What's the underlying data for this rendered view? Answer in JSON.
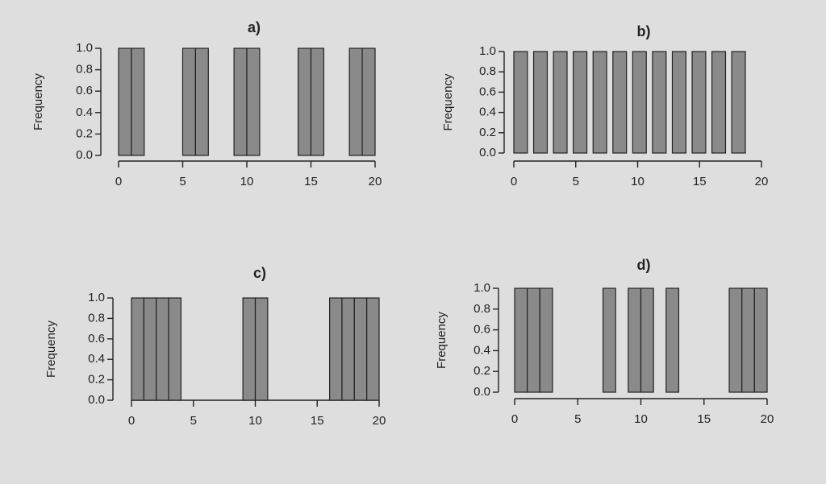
{
  "chart_data": [
    {
      "type": "histogram",
      "title": "a)",
      "y_label": "Frequency",
      "color": "#8a8a8a",
      "bins": [
        0,
        1,
        2,
        3,
        4,
        5,
        6,
        7,
        8,
        9,
        10,
        11,
        12,
        13,
        14,
        15,
        16,
        17,
        18,
        19,
        20
      ],
      "values": [
        1,
        1,
        0,
        0,
        0,
        1,
        1,
        0,
        0,
        1,
        1,
        0,
        0,
        0,
        1,
        1,
        0,
        0,
        1,
        1
      ],
      "xlim": [
        0,
        20
      ],
      "xticks": [
        0,
        5,
        10,
        15,
        20
      ],
      "ylim": [
        0,
        1
      ],
      "yticks": [
        {
          "value": 0,
          "label": "0.0"
        },
        {
          "value": 0.2,
          "label": "0.2"
        },
        {
          "value": 0.4,
          "label": "0.4"
        },
        {
          "value": 0.6,
          "label": "0.6"
        },
        {
          "value": 0.8,
          "label": "0.8"
        },
        {
          "value": 1,
          "label": "1.0"
        }
      ]
    },
    {
      "type": "histogram",
      "title": "b)",
      "y_label": "Frequency",
      "color": "#8a8a8a",
      "bins": [
        0,
        1.1,
        1.6,
        2.7,
        3.2,
        4.3,
        4.8,
        5.9,
        6.4,
        7.5,
        8,
        9.1,
        9.6,
        10.7,
        11.2,
        12.3,
        12.8,
        13.9,
        14.4,
        15.5,
        16,
        17.1,
        17.6,
        18.7
      ],
      "values": [
        1,
        0,
        1,
        0,
        1,
        0,
        1,
        0,
        1,
        0,
        1,
        0,
        1,
        0,
        1,
        0,
        1,
        0,
        1,
        0,
        1,
        0,
        1
      ],
      "xlim": [
        0,
        20
      ],
      "xticks": [
        0,
        5,
        10,
        15,
        20
      ],
      "ylim": [
        0,
        1
      ],
      "yticks": [
        {
          "value": 0,
          "label": "0.0"
        },
        {
          "value": 0.2,
          "label": "0.2"
        },
        {
          "value": 0.4,
          "label": "0.4"
        },
        {
          "value": 0.6,
          "label": "0.6"
        },
        {
          "value": 0.8,
          "label": "0.8"
        },
        {
          "value": 1,
          "label": "1.0"
        }
      ]
    },
    {
      "type": "histogram",
      "title": "c)",
      "y_label": "Frequency",
      "color": "#8a8a8a",
      "bins": [
        0,
        1,
        2,
        3,
        4,
        5,
        6,
        7,
        8,
        9,
        10,
        11,
        12,
        13,
        14,
        15,
        16,
        17,
        18,
        19,
        20
      ],
      "values": [
        1,
        1,
        1,
        1,
        0,
        0,
        0,
        0,
        0,
        1,
        1,
        0,
        0,
        0,
        0,
        0,
        1,
        1,
        1,
        1
      ],
      "xlim": [
        0,
        20
      ],
      "xticks": [
        0,
        5,
        10,
        15,
        20
      ],
      "ylim": [
        0,
        1
      ],
      "yticks": [
        {
          "value": 0,
          "label": "0.0"
        },
        {
          "value": 0.2,
          "label": "0.2"
        },
        {
          "value": 0.4,
          "label": "0.4"
        },
        {
          "value": 0.6,
          "label": "0.6"
        },
        {
          "value": 0.8,
          "label": "0.8"
        },
        {
          "value": 1,
          "label": "1.0"
        }
      ]
    },
    {
      "type": "histogram",
      "title": "d)",
      "y_label": "Frequency",
      "color": "#8a8a8a",
      "bins": [
        0,
        1,
        2,
        3,
        4,
        5,
        6,
        7,
        8,
        9,
        10,
        11,
        12,
        13,
        14,
        15,
        16,
        17,
        18,
        19,
        20
      ],
      "values": [
        1,
        1,
        1,
        0,
        0,
        0,
        0,
        1,
        0,
        1,
        1,
        0,
        1,
        0,
        0,
        0,
        0,
        1,
        1,
        1
      ],
      "xlim": [
        0,
        20
      ],
      "xticks": [
        0,
        5,
        10,
        15,
        20
      ],
      "ylim": [
        0,
        1
      ],
      "yticks": [
        {
          "value": 0,
          "label": "0.0"
        },
        {
          "value": 0.2,
          "label": "0.2"
        },
        {
          "value": 0.4,
          "label": "0.4"
        },
        {
          "value": 0.6,
          "label": "0.6"
        },
        {
          "value": 0.8,
          "label": "0.8"
        },
        {
          "value": 1,
          "label": "1.0"
        }
      ]
    }
  ]
}
